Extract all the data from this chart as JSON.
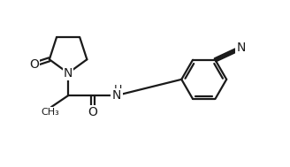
{
  "background_color": "#ffffff",
  "line_color": "#1a1a1a",
  "line_width": 1.6,
  "font_size": 9,
  "figsize": [
    3.28,
    1.89
  ],
  "dpi": 100,
  "xlim": [
    0,
    10
  ],
  "ylim": [
    0,
    6
  ]
}
